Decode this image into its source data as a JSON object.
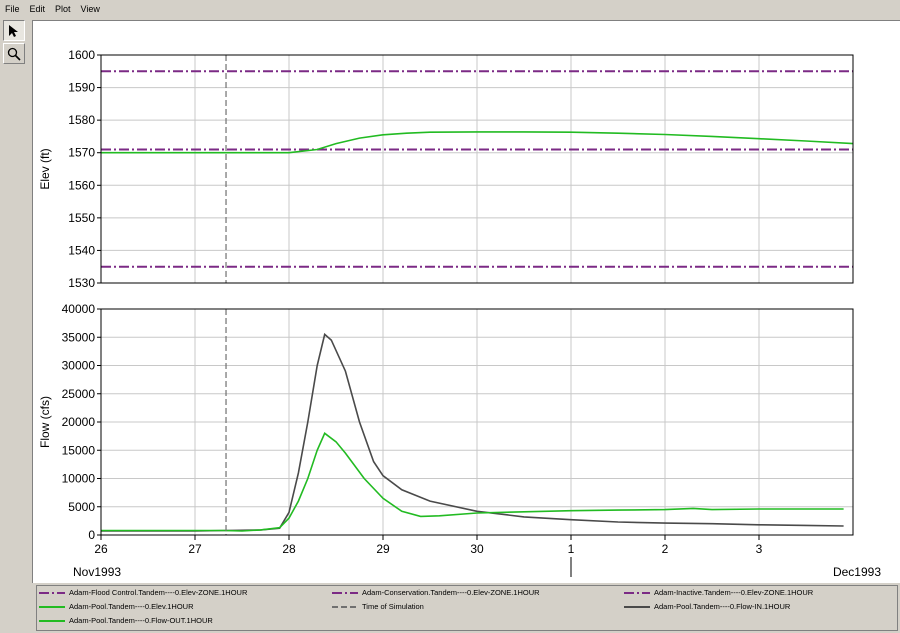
{
  "menu": [
    "File",
    "Edit",
    "Plot",
    "View"
  ],
  "toolbar": {
    "tools": [
      "pointer-icon",
      "zoom-icon"
    ]
  },
  "colors": {
    "zone": "#7b2a85",
    "elev": "#22bb22",
    "inflow": "#4a4a4a",
    "sim": "#707070"
  },
  "chart_data": [
    {
      "type": "line",
      "ylabel": "Elev (ft)",
      "xlabel": "",
      "ylim": [
        1530,
        1600
      ],
      "yticks": [
        1530,
        1540,
        1550,
        1560,
        1570,
        1580,
        1590,
        1600
      ],
      "xlim": [
        26,
        34
      ],
      "grid": true,
      "time_of_simulation": 27.33,
      "series": [
        {
          "name": "Adam-Flood Control.Tandem----0.Elev-ZONE.1HOUR",
          "x": [
            26,
            34
          ],
          "values": [
            1595,
            1595
          ]
        },
        {
          "name": "Adam-Conservation.Tandem----0.Elev-ZONE.1HOUR",
          "x": [
            26,
            34
          ],
          "values": [
            1571,
            1571
          ]
        },
        {
          "name": "Adam-Inactive.Tandem----0.Elev-ZONE.1HOUR",
          "x": [
            26,
            34
          ],
          "values": [
            1535,
            1535
          ]
        },
        {
          "name": "Adam-Pool.Tandem----0.Elev.1HOUR",
          "x": [
            26,
            27,
            28,
            28.3,
            28.5,
            28.75,
            29,
            29.25,
            29.5,
            30,
            30.5,
            31,
            31.5,
            32,
            32.5,
            33,
            33.5,
            34
          ],
          "values": [
            1570,
            1570,
            1570,
            1571,
            1572.8,
            1574.5,
            1575.5,
            1576,
            1576.3,
            1576.4,
            1576.4,
            1576.3,
            1576,
            1575.6,
            1575,
            1574.3,
            1573.6,
            1572.8
          ]
        }
      ]
    },
    {
      "type": "line",
      "ylabel": "Flow (cfs)",
      "xlabel": "",
      "ylim": [
        0,
        40000
      ],
      "yticks": [
        0,
        5000,
        10000,
        15000,
        20000,
        25000,
        30000,
        35000,
        40000
      ],
      "xlim": [
        26,
        34
      ],
      "xticks": [
        "26",
        "27",
        "28",
        "29",
        "30",
        "1",
        "2",
        "3"
      ],
      "xtick_values": [
        26,
        27,
        28,
        29,
        30,
        31,
        32,
        33
      ],
      "x_month_labels": [
        {
          "label": "Nov1993",
          "x": 26
        },
        {
          "label": "Dec1993",
          "x": 34
        }
      ],
      "month_boundary": 31,
      "grid": true,
      "time_of_simulation": 27.33,
      "series": [
        {
          "name": "Adam-Pool.Tandem----0.Flow-IN.1HOUR",
          "x": [
            26,
            27,
            27.7,
            27.9,
            28,
            28.1,
            28.2,
            28.3,
            28.38,
            28.45,
            28.6,
            28.75,
            28.9,
            29,
            29.2,
            29.5,
            30,
            30.5,
            31,
            31.5,
            32,
            32.5,
            33,
            33.5,
            33.9
          ],
          "values": [
            700,
            700,
            900,
            1200,
            4000,
            11000,
            20000,
            30000,
            35500,
            34500,
            29000,
            20000,
            13000,
            10500,
            8000,
            6000,
            4200,
            3200,
            2700,
            2300,
            2100,
            2000,
            1800,
            1700,
            1600
          ]
        },
        {
          "name": "Adam-Pool.Tandem----0.Flow-OUT.1HOUR",
          "x": [
            26,
            27,
            27.3,
            27.5,
            27.7,
            27.9,
            28,
            28.1,
            28.2,
            28.3,
            28.38,
            28.5,
            28.6,
            28.8,
            29,
            29.2,
            29.4,
            29.6,
            30,
            30.5,
            31,
            31.5,
            32,
            32.3,
            32.5,
            33,
            33.9
          ],
          "values": [
            800,
            800,
            800,
            700,
            900,
            1300,
            3000,
            6000,
            10000,
            15000,
            18000,
            16500,
            14500,
            10000,
            6500,
            4200,
            3300,
            3400,
            3900,
            4100,
            4300,
            4400,
            4500,
            4700,
            4500,
            4600,
            4600
          ]
        }
      ]
    }
  ],
  "legend": [
    {
      "label": "Adam-Flood Control.Tandem----0.Elev-ZONE.1HOUR",
      "style": "dashdot",
      "color": "#7b2a85"
    },
    {
      "label": "Adam-Conservation.Tandem----0.Elev-ZONE.1HOUR",
      "style": "dashdot",
      "color": "#7b2a85"
    },
    {
      "label": "Adam-Inactive.Tandem----0.Elev-ZONE.1HOUR",
      "style": "dashdot",
      "color": "#7b2a85"
    },
    {
      "label": "Adam-Pool.Tandem----0.Elev.1HOUR",
      "style": "solid",
      "color": "#22bb22"
    },
    {
      "label": "Time of Simulation",
      "style": "dash",
      "color": "#707070"
    },
    {
      "label": "Adam-Pool.Tandem----0.Flow-IN.1HOUR",
      "style": "solid",
      "color": "#4a4a4a"
    },
    {
      "label": "Adam-Pool.Tandem----0.Flow-OUT.1HOUR",
      "style": "solid",
      "color": "#22bb22"
    }
  ]
}
